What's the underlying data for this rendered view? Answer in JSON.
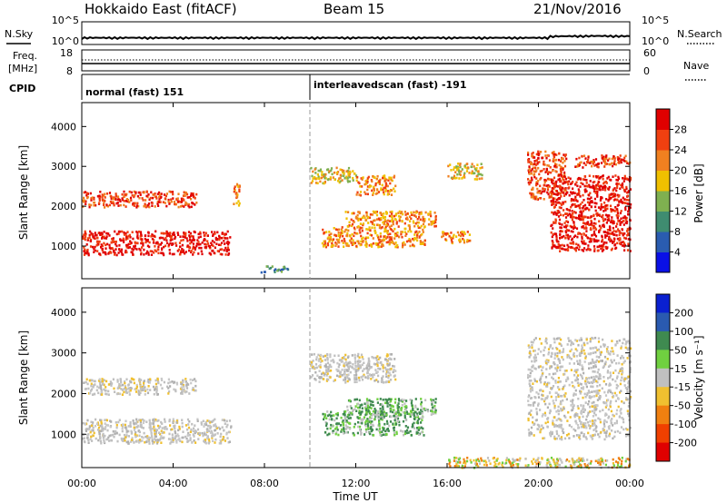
{
  "header": {
    "radar": "Hokkaido East (fitACF)",
    "beam": "Beam 15",
    "date": "21/Nov/2016"
  },
  "nsky_panel": {
    "left_label": "N.Sky",
    "right_label": "N.Search",
    "left_ticks": [
      "10^5",
      "10^0"
    ],
    "right_ticks": [
      "10^5",
      "10^0"
    ]
  },
  "freq_panel": {
    "left_label_1": "Freq.",
    "left_label_2": "[MHz]",
    "right_label": "Nave",
    "left_ticks": [
      "18",
      "8"
    ],
    "right_ticks": [
      "60",
      "0"
    ]
  },
  "cpid_panel": {
    "label": "CPID",
    "segments": [
      {
        "start_hour": 0,
        "label": "normal (fast) 151"
      },
      {
        "start_hour": 10,
        "label": "interleavedscan (fast) -191"
      }
    ]
  },
  "x_axis": {
    "label": "Time UT",
    "ticks": [
      "00:00",
      "04:00",
      "08:00",
      "12:00",
      "16:00",
      "20:00",
      "00:00"
    ],
    "range_hours": [
      0,
      24
    ]
  },
  "chart_data": [
    {
      "type": "heatmap",
      "name": "power",
      "ylabel": "Slant Range [km]",
      "ylim": [
        180,
        4600
      ],
      "yticks": [
        1000,
        2000,
        3000,
        4000
      ],
      "colorbar": {
        "label": "Power [dB]",
        "ticks": [
          "4",
          "8",
          "12",
          "16",
          "20",
          "24",
          "28"
        ],
        "colors": [
          "#0a10e6",
          "#2a5cb0",
          "#3f8c70",
          "#7fb050",
          "#f0c000",
          "#f08020",
          "#f04010",
          "#e00000"
        ]
      },
      "echo_regions": [
        {
          "t": [
            0,
            6.5
          ],
          "range": [
            800,
            1400
          ],
          "level": 7,
          "desc": "morning near-range band"
        },
        {
          "t": [
            0,
            5
          ],
          "range": [
            2000,
            2400
          ],
          "level": 6
        },
        {
          "t": [
            6.6,
            6.9
          ],
          "range": [
            2000,
            2600
          ],
          "level": 5
        },
        {
          "t": [
            7.8,
            9
          ],
          "range": [
            350,
            520
          ],
          "level": 2
        },
        {
          "t": [
            10,
            12
          ],
          "range": [
            2600,
            3000
          ],
          "level": 4
        },
        {
          "t": [
            12,
            13.7
          ],
          "range": [
            2300,
            2800
          ],
          "level": 5
        },
        {
          "t": [
            10.5,
            15
          ],
          "range": [
            1000,
            1500
          ],
          "level": 5
        },
        {
          "t": [
            11.5,
            15.5
          ],
          "range": [
            1500,
            1900
          ],
          "level": 5
        },
        {
          "t": [
            15.7,
            17
          ],
          "range": [
            1100,
            1400
          ],
          "level": 5
        },
        {
          "t": [
            16,
            17.5
          ],
          "range": [
            2700,
            3100
          ],
          "level": 4
        },
        {
          "t": [
            19.5,
            21.2
          ],
          "range": [
            2200,
            3400
          ],
          "level": 6
        },
        {
          "t": [
            20.5,
            24
          ],
          "range": [
            900,
            2800
          ],
          "level": 7
        },
        {
          "t": [
            21.5,
            24
          ],
          "range": [
            3000,
            3300
          ],
          "level": 6
        }
      ]
    },
    {
      "type": "heatmap",
      "name": "velocity",
      "ylabel": "Slant Range [km]",
      "ylim": [
        180,
        4600
      ],
      "yticks": [
        1000,
        2000,
        3000,
        4000
      ],
      "colorbar": {
        "label": "Velocity [m s⁻¹]",
        "ticks": [
          "200",
          "100",
          "50",
          "15",
          "-15",
          "-50",
          "-100",
          "-200"
        ],
        "colors": [
          "#0a20d0",
          "#2a5ab0",
          "#3f8a50",
          "#70d040",
          "#c0c0c0",
          "#f0c030",
          "#f08010",
          "#f04000",
          "#e00000"
        ]
      },
      "echo_regions": [
        {
          "t": [
            0,
            6.5
          ],
          "range": [
            800,
            1400
          ],
          "class": "low"
        },
        {
          "t": [
            0,
            5
          ],
          "range": [
            2000,
            2400
          ],
          "class": "low"
        },
        {
          "t": [
            10,
            13.7
          ],
          "range": [
            2300,
            3000
          ],
          "class": "low"
        },
        {
          "t": [
            10.5,
            15
          ],
          "range": [
            1000,
            1600
          ],
          "class": "toward"
        },
        {
          "t": [
            11.5,
            15.5
          ],
          "range": [
            1500,
            1900
          ],
          "class": "toward"
        },
        {
          "t": [
            19.5,
            24
          ],
          "range": [
            900,
            3400
          ],
          "class": "low"
        },
        {
          "t": [
            16,
            24
          ],
          "range": [
            200,
            450
          ],
          "class": "mixed"
        }
      ]
    }
  ]
}
